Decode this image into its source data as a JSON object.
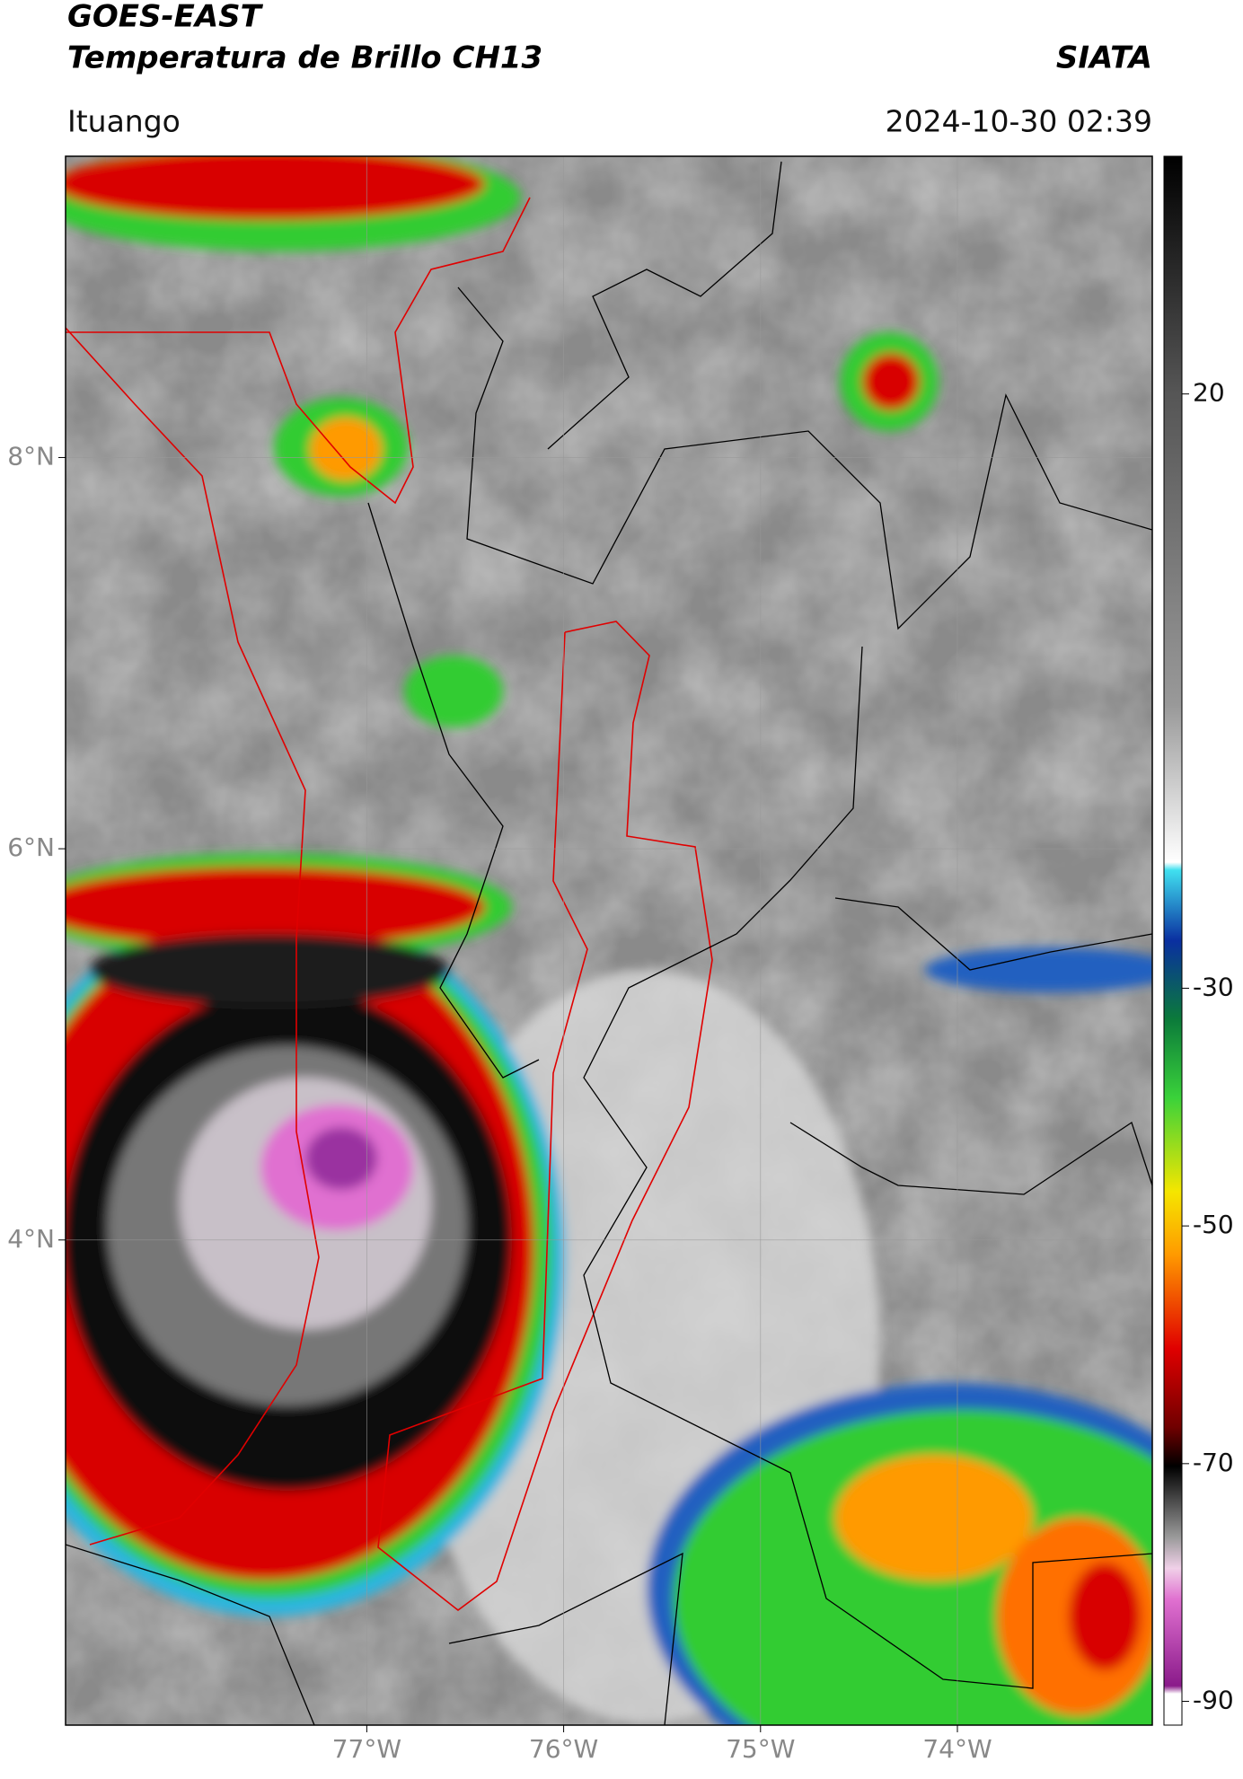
{
  "header": {
    "title_line1": "GOES-EAST",
    "title_line2": "Temperatura de Brillo CH13",
    "source": "SIATA",
    "region": "Ituango",
    "datetime": "2024-10-30 02:39"
  },
  "map": {
    "xlim": [
      -78.53,
      -73.01
    ],
    "ylim": [
      1.52,
      9.54
    ],
    "xticks": [
      {
        "value": -77,
        "label": "77°W"
      },
      {
        "value": -76,
        "label": "76°W"
      },
      {
        "value": -75,
        "label": "75°W"
      },
      {
        "value": -74,
        "label": "74°W"
      }
    ],
    "yticks": [
      {
        "value": 8,
        "label": "8°N"
      },
      {
        "value": 6,
        "label": "6°N"
      },
      {
        "value": 4,
        "label": "4°N"
      }
    ],
    "grid": true
  },
  "colorbar": {
    "clim": [
      -92,
      40
    ],
    "ticks": [
      20,
      -30,
      -50,
      -70,
      -90
    ]
  }
}
